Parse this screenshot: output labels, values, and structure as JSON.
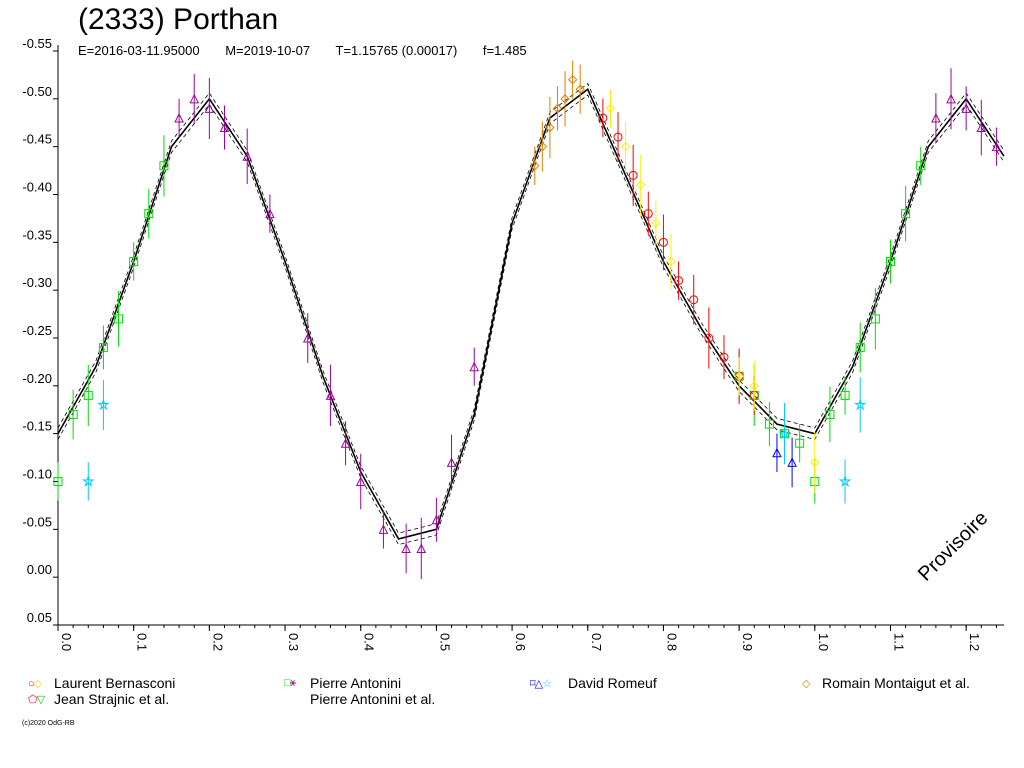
{
  "title": "(2333) Porthan",
  "subtitle": {
    "epoch": "E=2016-03-11.95000",
    "mid_date": "M=2019-10-07",
    "period": "T=1.15765 (0.00017)",
    "fourier_order": "f=1.485"
  },
  "watermark": "Provisoire",
  "copyright": "(c)2020 OdG-RB",
  "legend": [
    {
      "label": "Laurent Bernasconi",
      "symbols": "○◇",
      "colors": [
        "#ff0000",
        "#ffd700"
      ]
    },
    {
      "label": "Jean Strajnic et al.",
      "symbols": "⬠▽",
      "colors": [
        "#ff0000",
        "#00cc00"
      ]
    },
    {
      "label": "Pierre Antonini",
      "symbols": "□",
      "colors": [
        "#00cc00"
      ]
    },
    {
      "label": "Pierre Antonini et al.",
      "symbols": "",
      "colors": []
    },
    {
      "label": "David Romeuf",
      "symbols": "⌑△☆",
      "colors": [
        "#0000ff",
        "#0000ff",
        "#00ccff"
      ]
    },
    {
      "label": "Romain Montaigut et al.",
      "symbols": "◇",
      "colors": [
        "#e08000"
      ]
    }
  ],
  "chart_data": {
    "type": "scatter",
    "x_range": [
      0.0,
      1.25
    ],
    "y_range": [
      -0.55,
      0.05
    ],
    "y_inverted": true,
    "x_ticks": [
      "0.0",
      "0.1",
      "0.2",
      "0.3",
      "0.4",
      "0.5",
      "0.6",
      "0.7",
      "0.8",
      "0.9",
      "1.0",
      "1.1",
      "1.2"
    ],
    "y_ticks": [
      "-0.55",
      "-0.50",
      "-0.45",
      "-0.40",
      "-0.35",
      "-0.30",
      "-0.25",
      "-0.20",
      "-0.15",
      "-0.10",
      "-0.05",
      "0.00",
      "0.05"
    ],
    "grid": false,
    "fit_curve": {
      "description_visible": false,
      "phase": [
        0.0,
        0.05,
        0.1,
        0.15,
        0.2,
        0.25,
        0.3,
        0.35,
        0.4,
        0.45,
        0.5,
        0.55,
        0.6,
        0.65,
        0.7,
        0.75,
        0.8,
        0.85,
        0.9,
        0.95,
        1.0,
        1.05,
        1.1,
        1.15,
        1.2,
        1.25
      ],
      "mag": [
        -0.15,
        -0.22,
        -0.33,
        -0.45,
        -0.5,
        -0.44,
        -0.33,
        -0.21,
        -0.11,
        -0.04,
        -0.05,
        -0.17,
        -0.37,
        -0.48,
        -0.51,
        -0.42,
        -0.33,
        -0.26,
        -0.2,
        -0.16,
        -0.15,
        -0.22,
        -0.33,
        -0.45,
        -0.5,
        -0.44
      ]
    },
    "series": [
      {
        "name": "Pierre Antonini",
        "color": "#00dd00",
        "marker": "square",
        "x": [
          0.0,
          0.02,
          0.04,
          0.06,
          0.08,
          0.1,
          0.12,
          0.14,
          1.0,
          1.02,
          1.04,
          1.06,
          1.08,
          1.1,
          1.12,
          1.14,
          0.9,
          0.92,
          0.94,
          0.96,
          0.98
        ],
        "y": [
          -0.1,
          -0.17,
          -0.19,
          -0.24,
          -0.27,
          -0.33,
          -0.38,
          -0.43,
          -0.1,
          -0.17,
          -0.19,
          -0.24,
          -0.27,
          -0.33,
          -0.38,
          -0.43,
          -0.21,
          -0.19,
          -0.16,
          -0.15,
          -0.14
        ]
      },
      {
        "name": "Pierre Antonini et al.",
        "color": "#a000a0",
        "marker": "triangle",
        "x": [
          0.16,
          0.18,
          0.2,
          0.22,
          0.25,
          0.28,
          0.33,
          0.36,
          0.38,
          0.4,
          0.43,
          0.46,
          0.48,
          0.5,
          0.52,
          0.55,
          1.16,
          1.18,
          1.2,
          1.22,
          1.24
        ],
        "y": [
          -0.48,
          -0.5,
          -0.49,
          -0.47,
          -0.44,
          -0.38,
          -0.25,
          -0.19,
          -0.14,
          -0.1,
          -0.05,
          -0.03,
          -0.03,
          -0.06,
          -0.12,
          -0.22,
          -0.48,
          -0.5,
          -0.49,
          -0.47,
          -0.45
        ]
      },
      {
        "name": "Romain Montaigut et al.",
        "color": "#e08000",
        "marker": "diamond",
        "x": [
          0.63,
          0.64,
          0.65,
          0.66,
          0.67,
          0.68,
          0.69
        ],
        "y": [
          -0.43,
          -0.45,
          -0.47,
          -0.49,
          -0.5,
          -0.52,
          -0.51
        ]
      },
      {
        "name": "Laurent Bernasconi",
        "color": "#ff0000",
        "marker": "circle",
        "x": [
          0.72,
          0.74,
          0.76,
          0.78,
          0.8,
          0.82,
          0.84,
          0.86,
          0.88,
          0.9,
          0.92
        ],
        "y": [
          -0.48,
          -0.46,
          -0.42,
          -0.38,
          -0.35,
          -0.31,
          -0.29,
          -0.25,
          -0.23,
          -0.21,
          -0.19
        ]
      },
      {
        "name": "Laurent Bernasconi",
        "color": "#ffee00",
        "marker": "diamond",
        "x": [
          0.73,
          0.75,
          0.77,
          0.79,
          0.81,
          0.9,
          0.92,
          1.0
        ],
        "y": [
          -0.49,
          -0.45,
          -0.41,
          -0.37,
          -0.33,
          -0.21,
          -0.2,
          -0.12
        ]
      },
      {
        "name": "David Romeuf",
        "color": "#00ccff",
        "marker": "star",
        "x": [
          0.04,
          0.06,
          0.96,
          1.04,
          1.06
        ],
        "y": [
          -0.1,
          -0.18,
          -0.15,
          -0.1,
          -0.18
        ]
      },
      {
        "name": "David Romeuf",
        "color": "#0000ff",
        "marker": "triangle",
        "x": [
          0.95,
          0.97
        ],
        "y": [
          -0.13,
          -0.12
        ]
      }
    ]
  }
}
